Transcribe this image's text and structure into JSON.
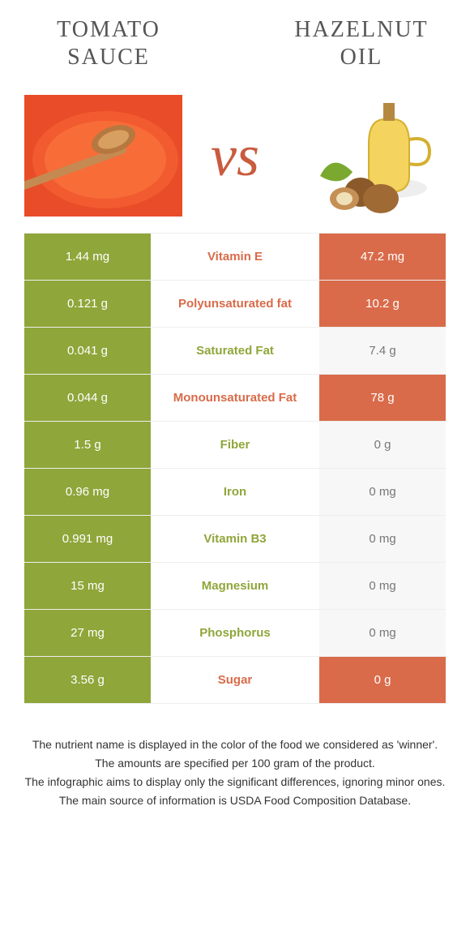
{
  "colors": {
    "left": "#8fa63a",
    "right": "#d96b4a",
    "neutral_bg": "#f7f7f7",
    "neutral_text": "#777777",
    "row_border": "#eeeeee"
  },
  "foods": {
    "left": {
      "name": "TOMATO SAUCE"
    },
    "right": {
      "name": "HAZELNUT OIL"
    }
  },
  "vs_label": "vs",
  "nutrients": [
    {
      "name": "Vitamin E",
      "left": "1.44 mg",
      "right": "47.2 mg",
      "winner": "right"
    },
    {
      "name": "Polyunsaturated fat",
      "left": "0.121 g",
      "right": "10.2 g",
      "winner": "right"
    },
    {
      "name": "Saturated Fat",
      "left": "0.041 g",
      "right": "7.4 g",
      "winner": "left"
    },
    {
      "name": "Monounsaturated Fat",
      "left": "0.044 g",
      "right": "78 g",
      "winner": "right"
    },
    {
      "name": "Fiber",
      "left": "1.5 g",
      "right": "0 g",
      "winner": "left"
    },
    {
      "name": "Iron",
      "left": "0.96 mg",
      "right": "0 mg",
      "winner": "left"
    },
    {
      "name": "Vitamin B3",
      "left": "0.991 mg",
      "right": "0 mg",
      "winner": "left"
    },
    {
      "name": "Magnesium",
      "left": "15 mg",
      "right": "0 mg",
      "winner": "left"
    },
    {
      "name": "Phosphorus",
      "left": "27 mg",
      "right": "0 mg",
      "winner": "left"
    },
    {
      "name": "Sugar",
      "left": "3.56 g",
      "right": "0 g",
      "winner": "right"
    }
  ],
  "footnotes": [
    "The nutrient name is displayed in the color of the food we considered as 'winner'.",
    "The amounts are specified per 100 gram of the product.",
    "The infographic aims to display only the significant differences, ignoring minor ones.",
    "The main source of information is USDA Food Composition Database."
  ]
}
